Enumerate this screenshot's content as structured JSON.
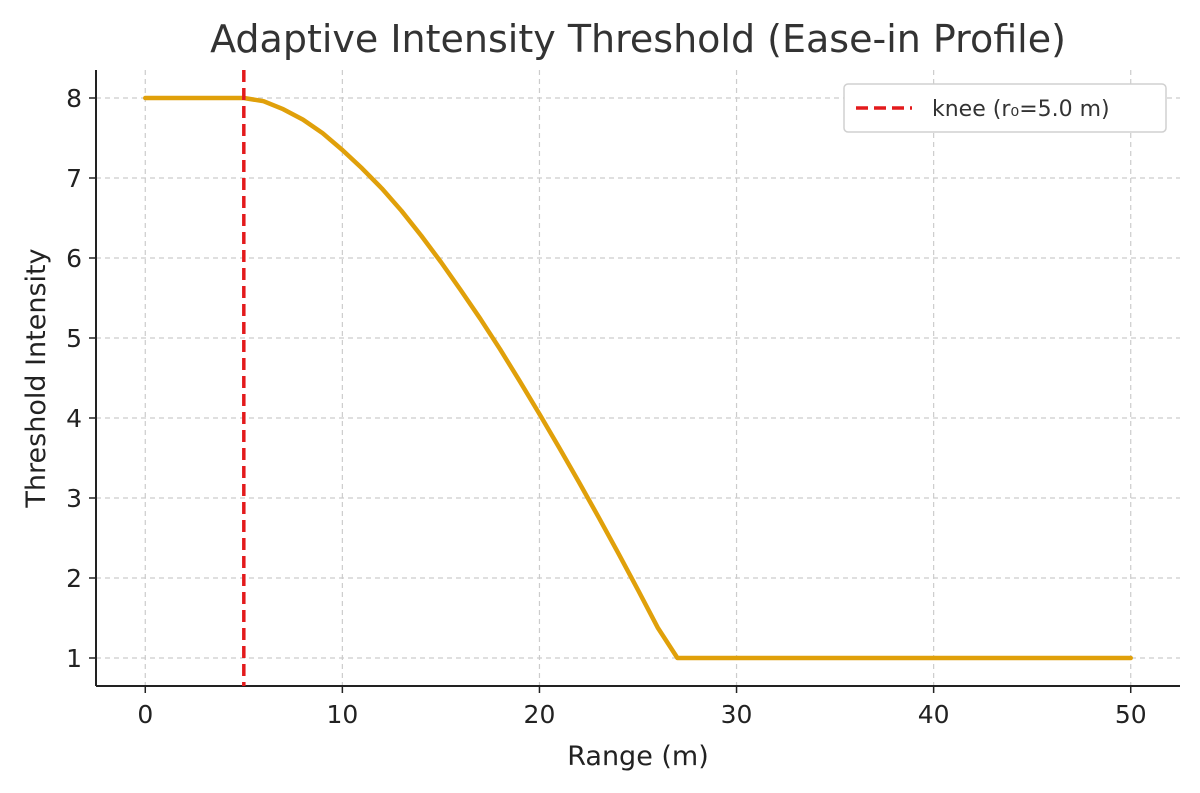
{
  "chart_data": {
    "type": "line",
    "title": "Adaptive Intensity Threshold (Ease-in Profile)",
    "xlabel": "Range (m)",
    "ylabel": "Threshold Intensity",
    "xlim": [
      -2.5,
      52.5
    ],
    "ylim": [
      0.65,
      8.35
    ],
    "xticks": [
      0,
      10,
      20,
      30,
      40,
      50
    ],
    "yticks": [
      1,
      2,
      3,
      4,
      5,
      6,
      7,
      8
    ],
    "grid": true,
    "legend_position": "top-right",
    "series": [
      {
        "name": "",
        "color": "#E0A00A",
        "x": [
          0,
          1,
          2,
          3,
          4,
          5,
          6,
          7,
          8,
          9,
          10,
          11,
          12,
          13,
          14,
          15,
          16,
          17,
          18,
          19,
          20,
          21,
          22,
          23,
          24,
          25,
          26,
          27,
          28,
          29,
          30,
          31,
          32,
          33,
          34,
          35,
          36,
          37,
          38,
          39,
          40,
          41,
          42,
          43,
          44,
          45,
          46,
          47,
          48,
          49,
          50
        ],
        "y": [
          8,
          8,
          8,
          8,
          8,
          8,
          7.96,
          7.86,
          7.73,
          7.56,
          7.35,
          7.12,
          6.87,
          6.59,
          6.28,
          5.95,
          5.6,
          5.24,
          4.86,
          4.46,
          4.05,
          3.63,
          3.2,
          2.76,
          2.31,
          1.85,
          1.38,
          1.0,
          1.0,
          1.0,
          1.0,
          1,
          1,
          1,
          1,
          1,
          1,
          1,
          1,
          1,
          1,
          1,
          1,
          1,
          1,
          1,
          1,
          1,
          1,
          1,
          1
        ]
      },
      {
        "name": "knee (r₀=5.0 m)",
        "color": "#E31A1C",
        "style": "dashed",
        "vertical_line_x": 5.0
      }
    ]
  }
}
